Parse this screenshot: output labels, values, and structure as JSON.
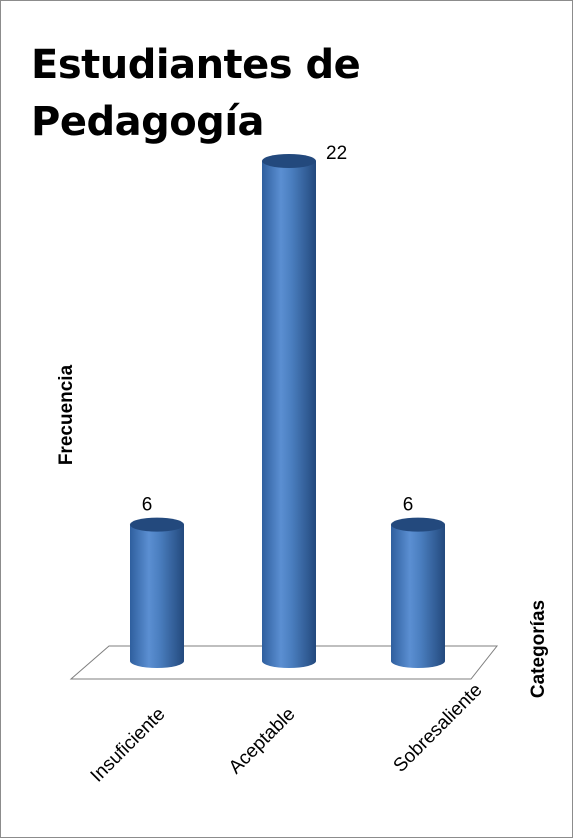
{
  "chart_data": {
    "type": "bar",
    "title": "Estudiantes de Pedagogía",
    "xlabel": "Categorías",
    "ylabel": "Frecuencia",
    "categories": [
      "Insuficiente",
      "Aceptable",
      "Sobresaliente"
    ],
    "values": [
      6,
      22,
      6
    ],
    "data_labels": [
      "6",
      "22",
      "6"
    ],
    "ylim": [
      0,
      22
    ],
    "bar_style": "3d-cylinder",
    "colors": {
      "bar": "#4a7ebf",
      "bar_dark": "#23497d",
      "bar_light": "#8fb2e2",
      "floor": "#7f7f7f"
    },
    "grid": false,
    "legend": "none"
  }
}
